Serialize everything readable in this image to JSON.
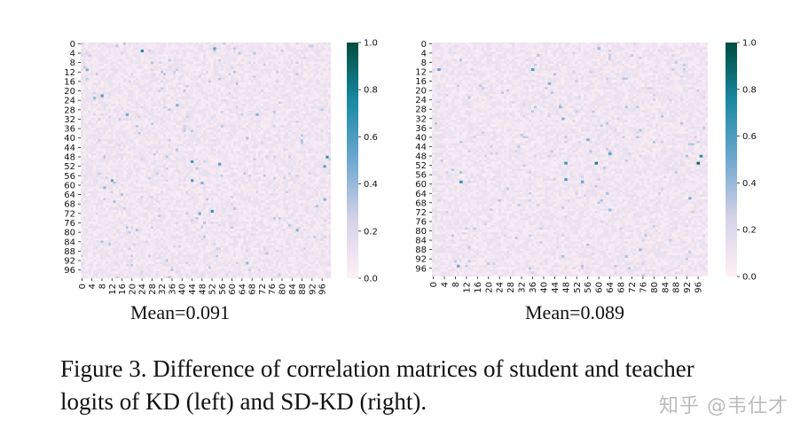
{
  "chart_data": [
    {
      "type": "heatmap",
      "panel": "left",
      "subtitle": "Mean=0.091",
      "mean": 0.091,
      "rows": 100,
      "cols": 100,
      "ytick_labels": [
        "0",
        "4",
        "8",
        "12",
        "16",
        "20",
        "24",
        "28",
        "32",
        "36",
        "40",
        "44",
        "48",
        "52",
        "56",
        "60",
        "64",
        "68",
        "72",
        "76",
        "80",
        "84",
        "88",
        "92",
        "96"
      ],
      "xtick_labels": [
        "0",
        "4",
        "8",
        "12",
        "16",
        "20",
        "24",
        "28",
        "32",
        "36",
        "40",
        "44",
        "48",
        "52",
        "56",
        "60",
        "64",
        "68",
        "72",
        "76",
        "80",
        "84",
        "88",
        "92",
        "96"
      ],
      "colorbar": {
        "min": 0.0,
        "max": 1.0,
        "ticks": [
          "0.0",
          "0.2",
          "0.4",
          "0.6",
          "0.8",
          "1.0"
        ],
        "colormap": [
          "#fff0f6",
          "#d6d2e8",
          "#6fa8d0",
          "#1a8aa3",
          "#004d40"
        ]
      },
      "highlight_cells": [
        {
          "r": 3,
          "c": 24,
          "v": 0.75
        },
        {
          "r": 2,
          "c": 53,
          "v": 0.55
        },
        {
          "r": 11,
          "c": 2,
          "v": 0.45
        },
        {
          "r": 22,
          "c": 8,
          "v": 0.6
        },
        {
          "r": 23,
          "c": 5,
          "v": 0.4
        },
        {
          "r": 26,
          "c": 38,
          "v": 0.45
        },
        {
          "r": 30,
          "c": 18,
          "v": 0.5
        },
        {
          "r": 30,
          "c": 70,
          "v": 0.45
        },
        {
          "r": 48,
          "c": 98,
          "v": 0.7
        },
        {
          "r": 50,
          "c": 44,
          "v": 0.65
        },
        {
          "r": 51,
          "c": 55,
          "v": 0.6
        },
        {
          "r": 52,
          "c": 97,
          "v": 0.55
        },
        {
          "r": 58,
          "c": 12,
          "v": 0.55
        },
        {
          "r": 58,
          "c": 44,
          "v": 0.6
        },
        {
          "r": 59,
          "c": 48,
          "v": 0.45
        },
        {
          "r": 61,
          "c": 9,
          "v": 0.4
        },
        {
          "r": 71,
          "c": 52,
          "v": 0.7
        },
        {
          "r": 72,
          "c": 47,
          "v": 0.5
        },
        {
          "r": 79,
          "c": 86,
          "v": 0.45
        },
        {
          "r": 93,
          "c": 66,
          "v": 0.4
        },
        {
          "r": 66,
          "c": 97,
          "v": 0.45
        },
        {
          "r": 40,
          "c": 66,
          "v": 0.35
        }
      ]
    },
    {
      "type": "heatmap",
      "panel": "right",
      "subtitle": "Mean=0.089",
      "mean": 0.089,
      "rows": 100,
      "cols": 100,
      "ytick_labels": [
        "0",
        "4",
        "8",
        "12",
        "16",
        "20",
        "24",
        "28",
        "32",
        "36",
        "40",
        "44",
        "48",
        "52",
        "56",
        "60",
        "64",
        "68",
        "72",
        "76",
        "80",
        "84",
        "88",
        "92",
        "96"
      ],
      "xtick_labels": [
        "0",
        "4",
        "8",
        "12",
        "16",
        "20",
        "24",
        "28",
        "32",
        "36",
        "40",
        "44",
        "48",
        "52",
        "56",
        "60",
        "64",
        "68",
        "72",
        "76",
        "80",
        "84",
        "88",
        "92",
        "96"
      ],
      "colorbar": {
        "min": 0.0,
        "max": 1.0,
        "ticks": [
          "0.0",
          "0.2",
          "0.4",
          "0.6",
          "0.8",
          "1.0"
        ],
        "colormap": [
          "#fff0f6",
          "#d6d2e8",
          "#6fa8d0",
          "#1a8aa3",
          "#004d40"
        ]
      },
      "highlight_cells": [
        {
          "r": 11,
          "c": 2,
          "v": 0.55
        },
        {
          "r": 11,
          "c": 36,
          "v": 0.6
        },
        {
          "r": 2,
          "c": 60,
          "v": 0.4
        },
        {
          "r": 17,
          "c": 42,
          "v": 0.45
        },
        {
          "r": 27,
          "c": 46,
          "v": 0.4
        },
        {
          "r": 41,
          "c": 56,
          "v": 0.45
        },
        {
          "r": 47,
          "c": 64,
          "v": 0.55
        },
        {
          "r": 51,
          "c": 59,
          "v": 0.8
        },
        {
          "r": 51,
          "c": 96,
          "v": 0.9
        },
        {
          "r": 48,
          "c": 97,
          "v": 0.7
        },
        {
          "r": 51,
          "c": 48,
          "v": 0.65
        },
        {
          "r": 58,
          "c": 48,
          "v": 0.6
        },
        {
          "r": 59,
          "c": 10,
          "v": 0.7
        },
        {
          "r": 59,
          "c": 54,
          "v": 0.5
        },
        {
          "r": 32,
          "c": 47,
          "v": 0.45
        },
        {
          "r": 66,
          "c": 93,
          "v": 0.45
        },
        {
          "r": 95,
          "c": 9,
          "v": 0.5
        },
        {
          "r": 88,
          "c": 75,
          "v": 0.4
        },
        {
          "r": 64,
          "c": 63,
          "v": 0.35
        },
        {
          "r": 71,
          "c": 64,
          "v": 0.4
        }
      ]
    }
  ],
  "caption": {
    "line1": "Figure 3. Difference of correlation matrices of student and teacher",
    "line2": "logits of KD (left) and SD-KD (right)."
  },
  "watermark": "知乎 @韦仕才"
}
